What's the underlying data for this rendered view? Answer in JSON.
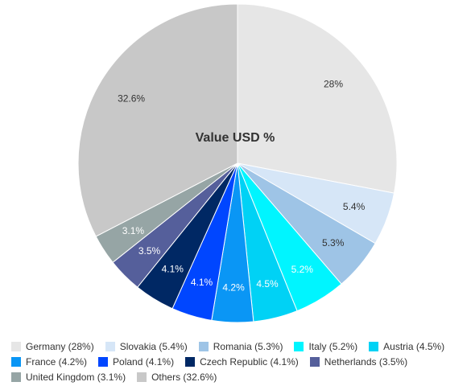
{
  "chart_data": {
    "type": "pie",
    "title": "Value USD %",
    "slices": [
      {
        "name": "Germany",
        "value": 28,
        "label": "28%",
        "legend": "Germany (28%)",
        "color": "#e6e6e6",
        "label_color": "#333333"
      },
      {
        "name": "Slovakia",
        "value": 5.4,
        "label": "5.4%",
        "legend": "Slovakia (5.4%)",
        "color": "#d6e6f7",
        "label_color": "#333333"
      },
      {
        "name": "Romania",
        "value": 5.3,
        "label": "5.3%",
        "legend": "Romania (5.3%)",
        "color": "#9ec4e6",
        "label_color": "#333333"
      },
      {
        "name": "Italy",
        "value": 5.2,
        "label": "5.2%",
        "legend": "Italy (5.2%)",
        "color": "#00f5ff",
        "label_color": "#ffffff"
      },
      {
        "name": "Austria",
        "value": 4.5,
        "label": "4.5%",
        "legend": "Austria (4.5%)",
        "color": "#00d2f5",
        "label_color": "#ffffff"
      },
      {
        "name": "France",
        "value": 4.2,
        "label": "4.2%",
        "legend": "France (4.2%)",
        "color": "#0a96f5",
        "label_color": "#ffffff"
      },
      {
        "name": "Poland",
        "value": 4.1,
        "label": "4.1%",
        "legend": "Poland (4.1%)",
        "color": "#0046ff",
        "label_color": "#ffffff"
      },
      {
        "name": "Czech Republic",
        "value": 4.1,
        "label": "4.1%",
        "legend": "Czech Republic (4.1%)",
        "color": "#002864",
        "label_color": "#ffffff"
      },
      {
        "name": "Netherlands",
        "value": 3.5,
        "label": "3.5%",
        "legend": "Netherlands (3.5%)",
        "color": "#555f9b",
        "label_color": "#ffffff"
      },
      {
        "name": "United Kingdom",
        "value": 3.1,
        "label": "3.1%",
        "legend": "United Kingdom (3.1%)",
        "color": "#96a5a5",
        "label_color": "#ffffff"
      },
      {
        "name": "Others",
        "value": 32.6,
        "label": "32.6%",
        "legend": "Others (32.6%)",
        "color": "#c8c8c8",
        "label_color": "#333333"
      }
    ],
    "legend_placement": "bottom"
  }
}
